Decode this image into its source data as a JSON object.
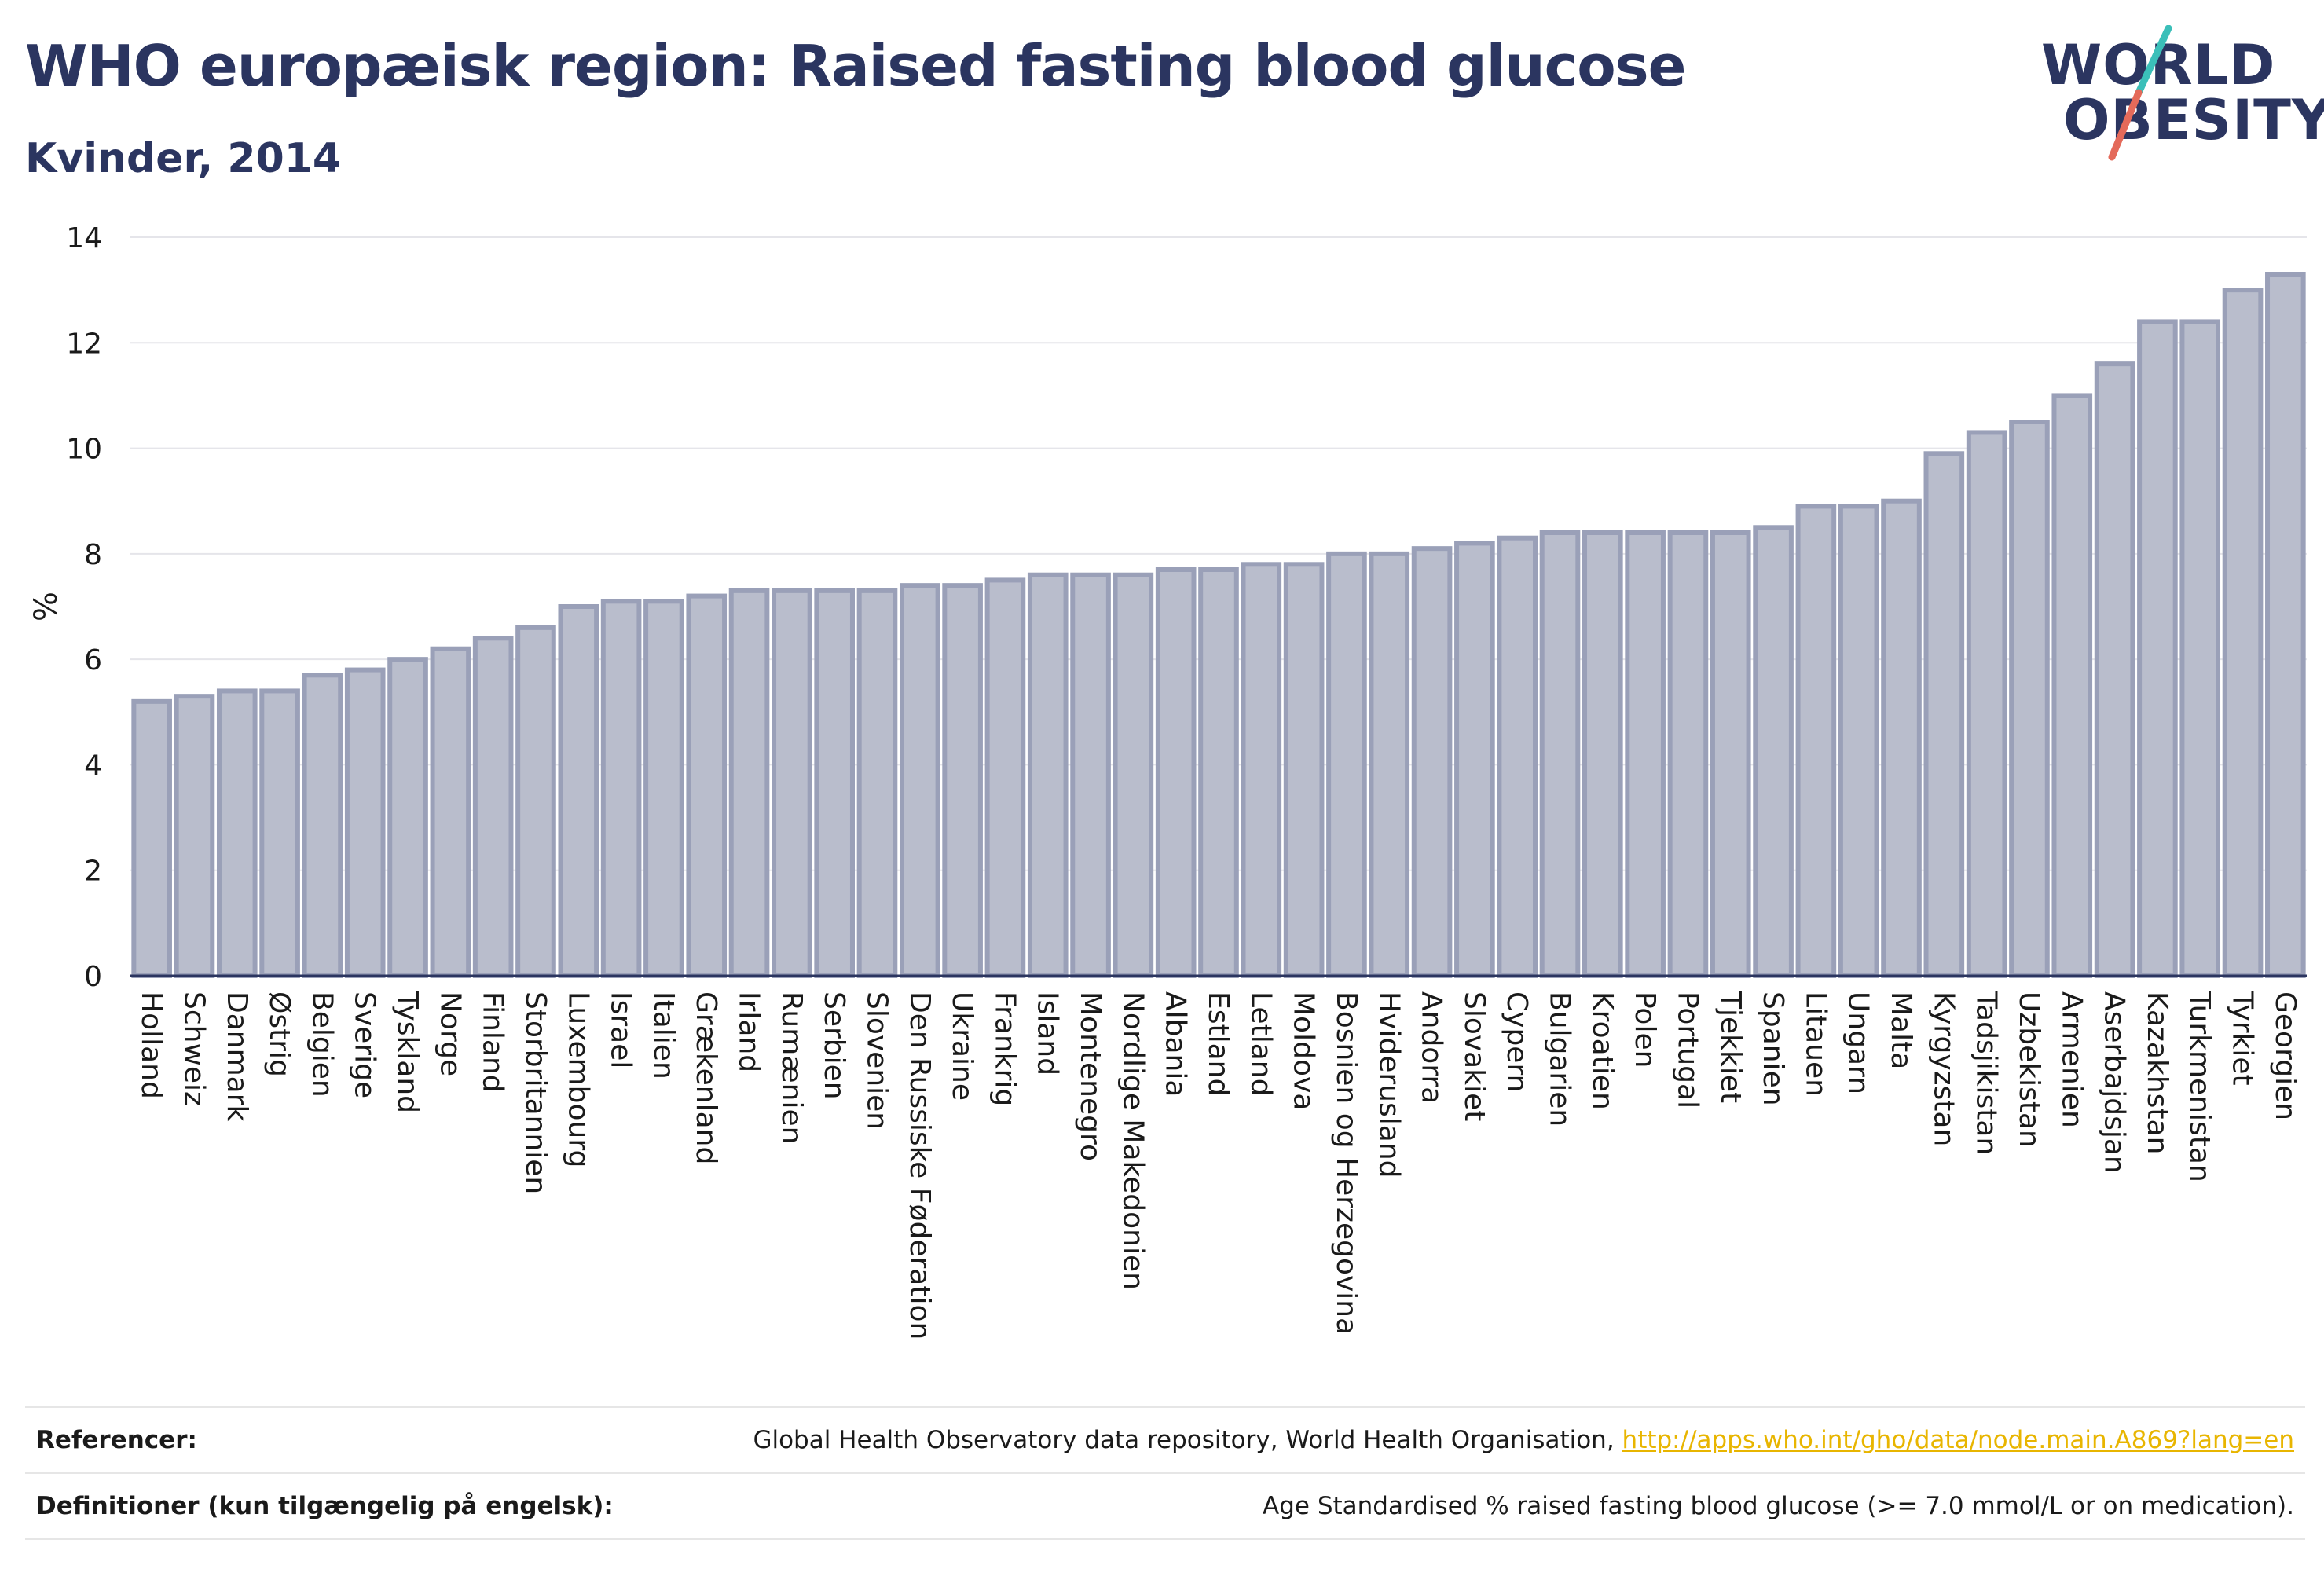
{
  "header": {
    "title": "WHO europæisk region: Raised fasting blood glucose",
    "subtitle": "Kvinder, 2014"
  },
  "logo": {
    "line1": "WORLD",
    "line2": "OBESITY",
    "colors": {
      "text": "#2b3560",
      "slash_top": "#3bbfb9",
      "slash_bottom": "#e46a5a"
    }
  },
  "chart_data": {
    "type": "bar",
    "ylabel": "%",
    "xlabel": "",
    "ylim": [
      0,
      14
    ],
    "yticks": [
      0,
      2,
      4,
      6,
      8,
      10,
      12,
      14
    ],
    "grid": true,
    "bar_color": "#b9bdcc",
    "bar_edge_color": "#9aa0b8",
    "categories": [
      "Holland",
      "Schweiz",
      "Danmark",
      "Østrig",
      "Belgien",
      "Sverige",
      "Tyskland",
      "Norge",
      "Finland",
      "Storbritannien",
      "Luxembourg",
      "Israel",
      "Italien",
      "Grækenland",
      "Irland",
      "Rumænien",
      "Serbien",
      "Slovenien",
      "Den Russiske Føderation",
      "Ukraine",
      "Frankrig",
      "Island",
      "Montenegro",
      "Nordlige Makedonien",
      "Albania",
      "Estland",
      "Letland",
      "Moldova",
      "Bosnien og Herzegovina",
      "Hviderusland",
      "Andorra",
      "Slovakiet",
      "Cypern",
      "Bulgarien",
      "Kroatien",
      "Polen",
      "Portugal",
      "Tjekkiet",
      "Spanien",
      "Litauen",
      "Ungarn",
      "Malta",
      "Kyrgyzstan",
      "Tadsjikistan",
      "Uzbekistan",
      "Armenien",
      "Aserbajdsjan",
      "Kazakhstan",
      "Turkmenistan",
      "Tyrkiet",
      "Georgien"
    ],
    "values": [
      5.2,
      5.3,
      5.4,
      5.4,
      5.7,
      5.8,
      6.0,
      6.2,
      6.4,
      6.6,
      7.0,
      7.1,
      7.1,
      7.2,
      7.3,
      7.3,
      7.3,
      7.3,
      7.4,
      7.4,
      7.5,
      7.6,
      7.6,
      7.6,
      7.7,
      7.7,
      7.8,
      7.8,
      8.0,
      8.0,
      8.1,
      8.2,
      8.3,
      8.4,
      8.4,
      8.4,
      8.4,
      8.4,
      8.5,
      8.9,
      8.9,
      9.0,
      9.9,
      10.3,
      10.5,
      11.0,
      11.6,
      12.4,
      12.4,
      13.0,
      13.3
    ]
  },
  "footer": {
    "ref_label": "Referencer:",
    "ref_text": "Global Health Observatory data repository, World Health Organisation, ",
    "ref_link": "http://apps.who.int/gho/data/node.main.A869?lang=en",
    "def_label": "Definitioner (kun tilgængelig på engelsk):",
    "def_text": "Age Standardised % raised fasting blood glucose (>= 7.0 mmol/L or on medication)."
  }
}
